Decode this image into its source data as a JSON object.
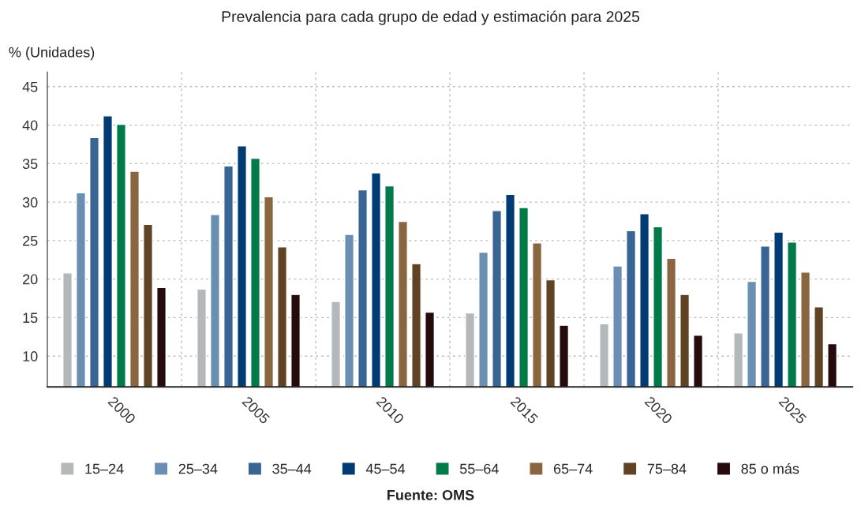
{
  "chart_data": {
    "type": "bar",
    "title": "Prevalencia para cada grupo de edad y estimación para 2025",
    "ylabel": "% (Unidades)",
    "categories": [
      "2000",
      "2005",
      "2010",
      "2015",
      "2020",
      "2025"
    ],
    "series": [
      {
        "name": "15–24",
        "color": "#b5b8bb",
        "values": [
          20.8,
          18.7,
          17.1,
          15.6,
          14.2,
          13.0
        ]
      },
      {
        "name": "25–34",
        "color": "#6b8fb2",
        "values": [
          31.2,
          28.4,
          25.8,
          23.5,
          21.7,
          19.7
        ]
      },
      {
        "name": "35–44",
        "color": "#386593",
        "values": [
          38.4,
          34.7,
          31.6,
          28.9,
          26.3,
          24.3
        ]
      },
      {
        "name": "45–54",
        "color": "#003b73",
        "values": [
          41.2,
          37.3,
          33.8,
          31.0,
          28.5,
          26.1
        ]
      },
      {
        "name": "55–64",
        "color": "#007a48",
        "values": [
          40.1,
          35.7,
          32.1,
          29.3,
          26.8,
          24.8
        ]
      },
      {
        "name": "65–74",
        "color": "#8a6640",
        "values": [
          34.0,
          30.7,
          27.5,
          24.7,
          22.7,
          20.9
        ]
      },
      {
        "name": "75–84",
        "color": "#604324",
        "values": [
          27.1,
          24.2,
          22.0,
          19.9,
          18.0,
          16.4
        ]
      },
      {
        "name": "85 o más",
        "color": "#260b0c",
        "values": [
          18.9,
          18.0,
          15.7,
          14.0,
          12.7,
          11.6
        ]
      }
    ],
    "ylim": [
      6,
      47
    ],
    "yticks": [
      10,
      15,
      20,
      25,
      30,
      35,
      40,
      45
    ],
    "grid": true,
    "legend": "bottom",
    "annotations": [
      "Fuente: OMS"
    ]
  }
}
